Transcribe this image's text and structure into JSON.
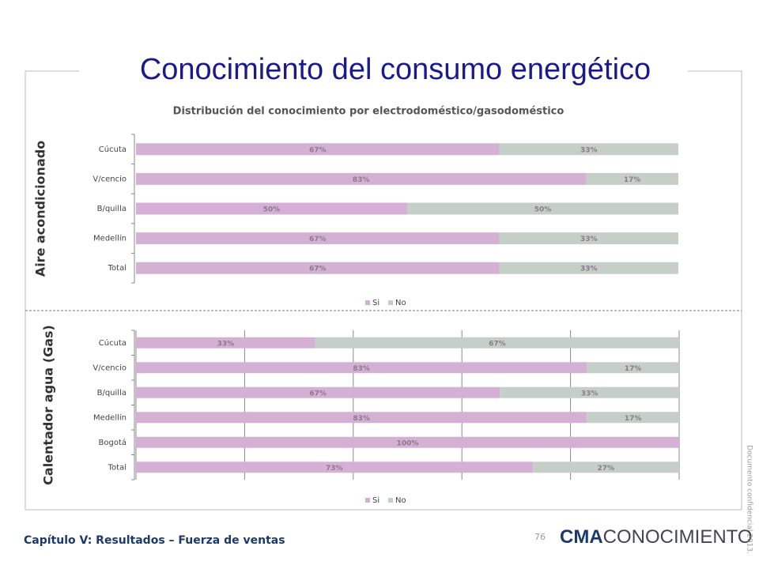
{
  "title": "Conocimiento del consumo energético",
  "footer": "Capítulo V: Resultados – Fuerza de ventas",
  "page_number": 76,
  "logo": {
    "bold": "CMA",
    "rest": "CONOCIMIENTO"
  },
  "confidential": "Documento confidencial 2013.",
  "chart_data": [
    {
      "type": "bar",
      "orientation": "horizontal",
      "stacked": true,
      "title": "Distribución del conocimiento por electrodoméstico/gasodoméstico",
      "ylabel": "Aire acondicionado",
      "categories": [
        "Cúcuta",
        "V/cencio",
        "B/quilla",
        "Medellín",
        "Total"
      ],
      "series": [
        {
          "name": "Si",
          "color": "#d5b0d5",
          "values": [
            67,
            83,
            50,
            67,
            67
          ],
          "value_labels": [
            "67%",
            "83%",
            "50%",
            "67%",
            "67%"
          ]
        },
        {
          "name": "No",
          "color": "#c5cfc8",
          "values": [
            33,
            17,
            50,
            33,
            33
          ],
          "value_labels": [
            "33%",
            "17%",
            "50%",
            "33%",
            "33%"
          ]
        }
      ],
      "xlim": [
        0,
        100
      ],
      "grid": false,
      "legend": "bottom"
    },
    {
      "type": "bar",
      "orientation": "horizontal",
      "stacked": true,
      "ylabel": "Calentador agua (Gas)",
      "categories": [
        "Cúcuta",
        "V/cencio",
        "B/quilla",
        "Medellín",
        "Bogotá",
        "Total"
      ],
      "series": [
        {
          "name": "Si",
          "color": "#d5b0d5",
          "values": [
            33,
            83,
            67,
            83,
            100,
            73
          ],
          "value_labels": [
            "33%",
            "83%",
            "67%",
            "83%",
            "100%",
            "73%"
          ]
        },
        {
          "name": "No",
          "color": "#c5cfc8",
          "values": [
            67,
            17,
            33,
            17,
            0,
            27
          ],
          "value_labels": [
            "67%",
            "17%",
            "33%",
            "17%",
            null,
            "27%"
          ]
        }
      ],
      "xlim": [
        0,
        100
      ],
      "xticks": [
        0,
        20,
        40,
        60,
        80,
        100
      ],
      "grid": true,
      "legend": "bottom"
    }
  ]
}
